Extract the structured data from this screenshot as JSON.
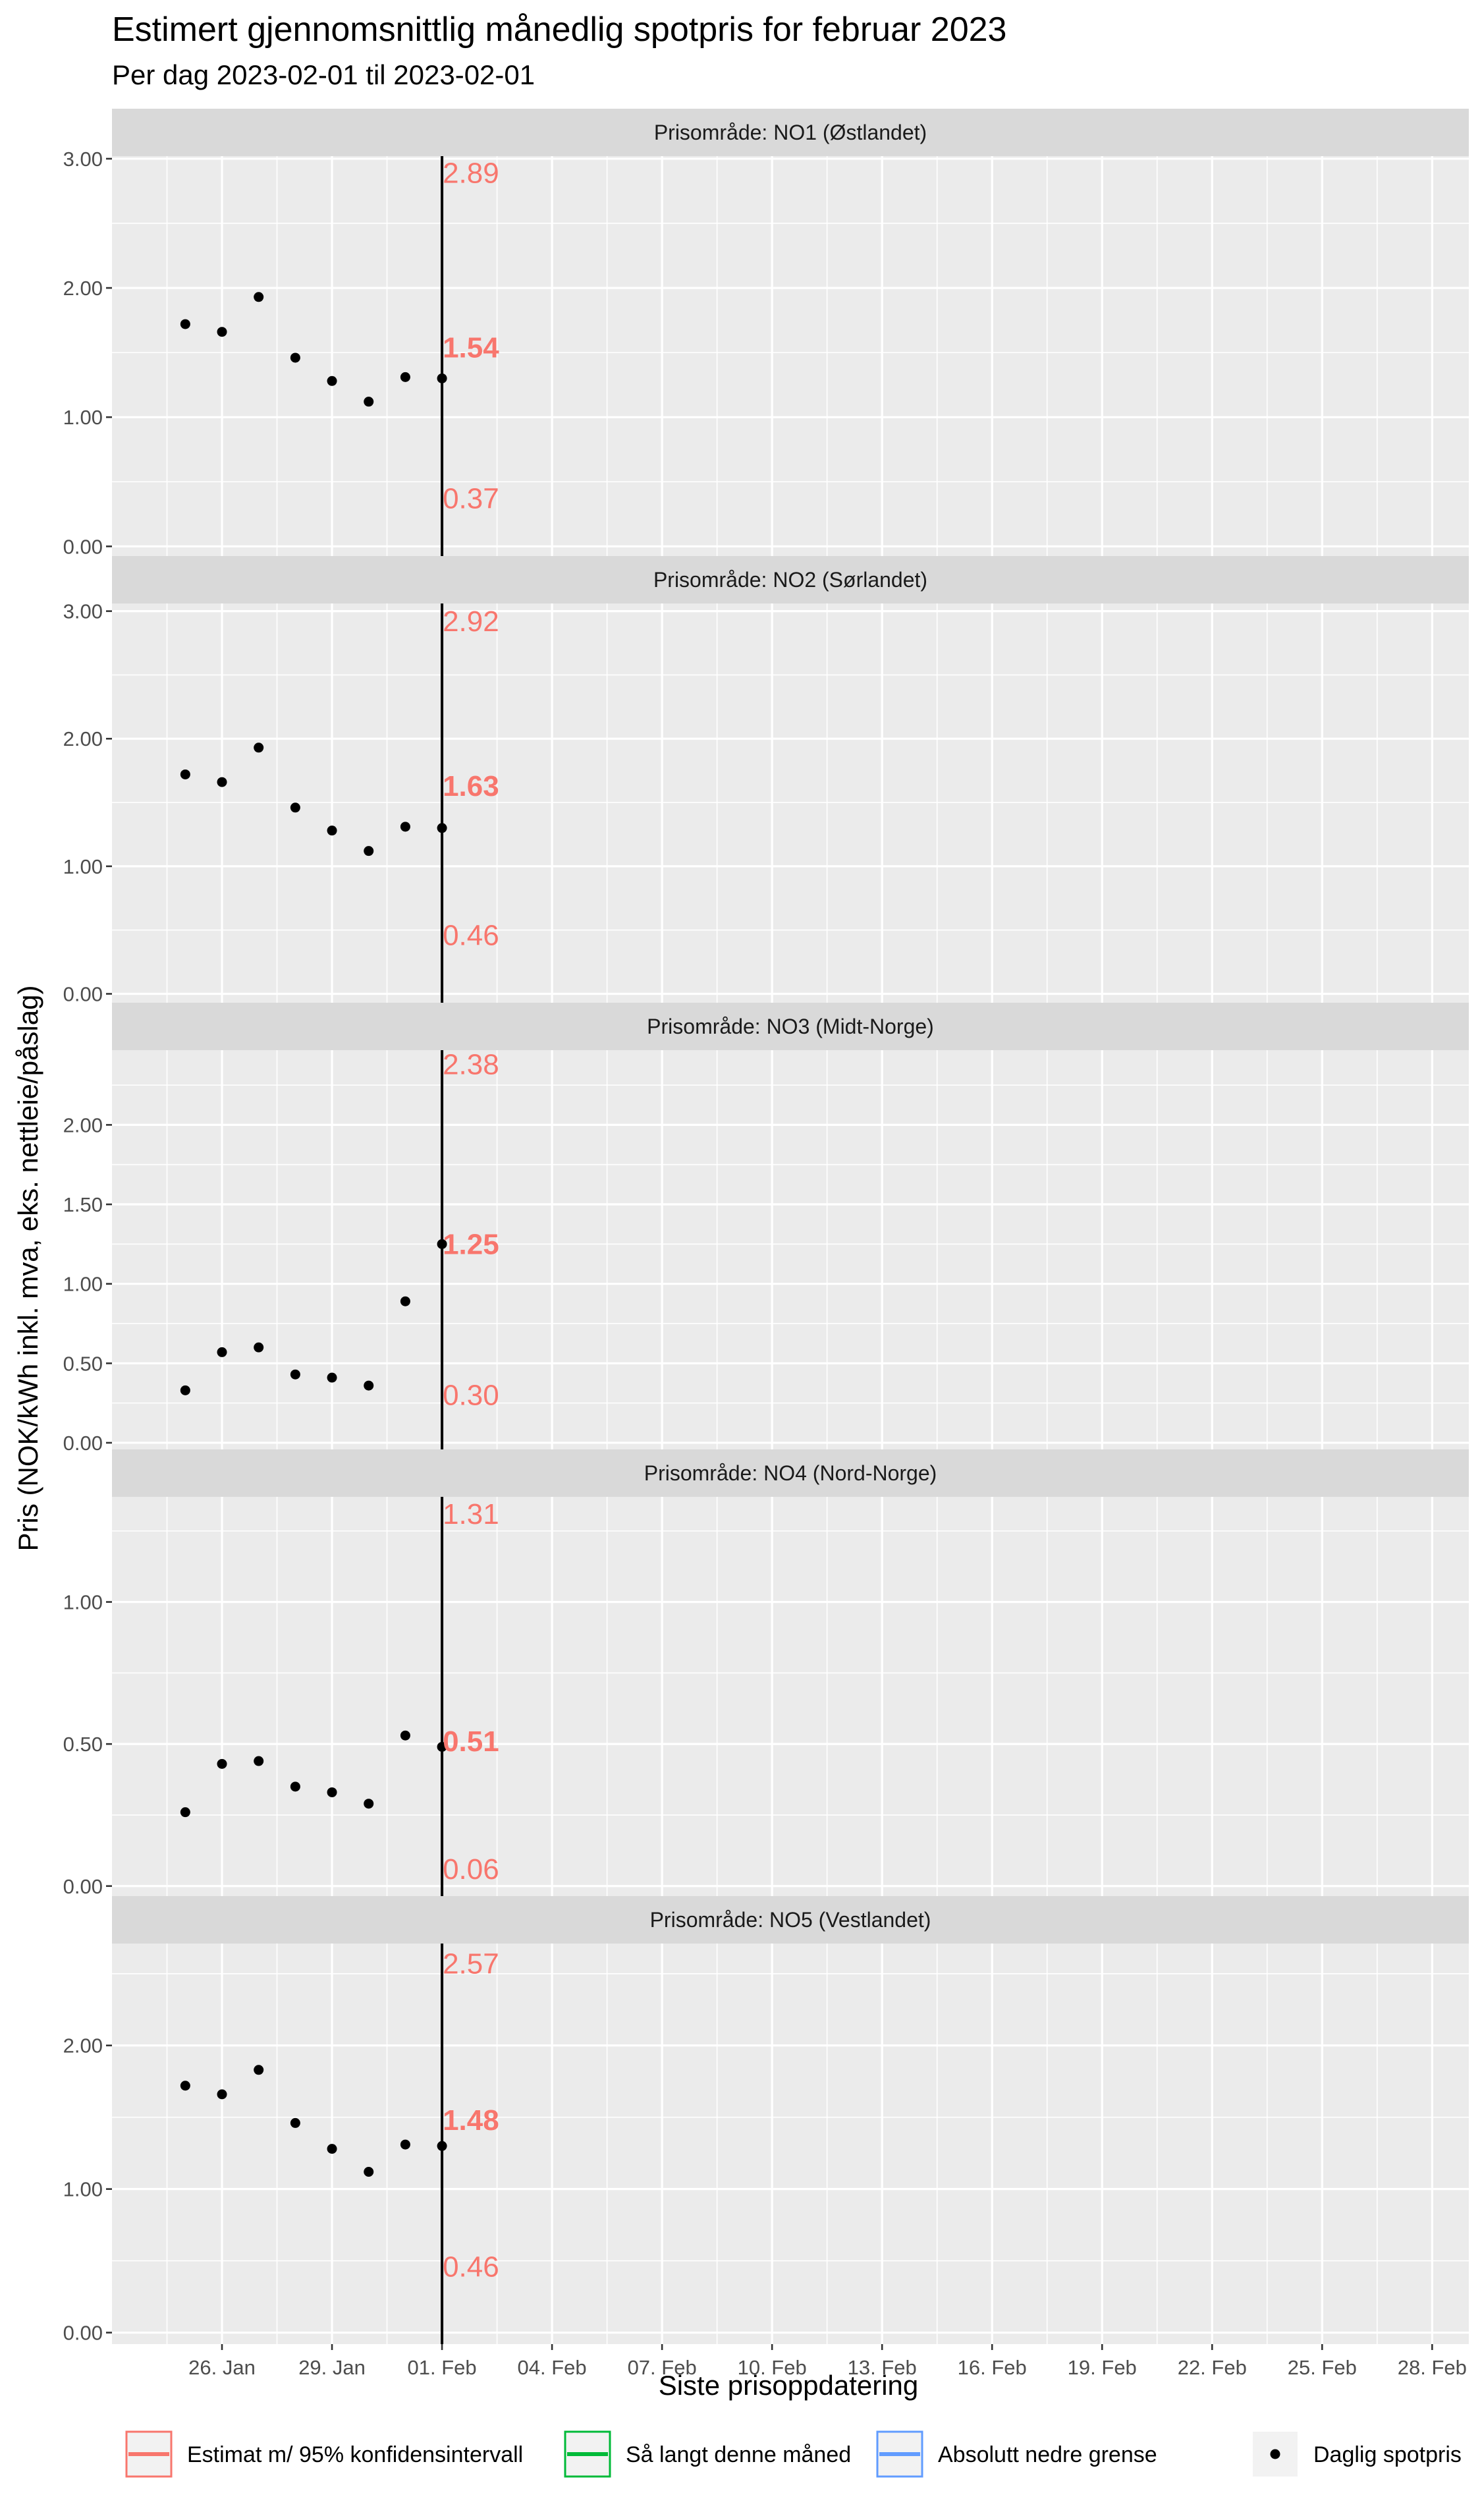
{
  "header": {
    "title": "Estimert gjennomsnittlig månedlig spotpris for februar 2023",
    "subtitle": "Per dag 2023-02-01 til 2023-02-01"
  },
  "chart_data": {
    "type": "scatter",
    "xlabel": "Siste prisoppdatering",
    "ylabel": "Pris (NOK/kWh inkl. mva, eks. nettleie/påslag)",
    "x_range": [
      "2023-01-23",
      "2023-03-01"
    ],
    "x_ticks": [
      "2023-01-26",
      "2023-01-29",
      "2023-02-01",
      "2023-02-04",
      "2023-02-07",
      "2023-02-10",
      "2023-02-13",
      "2023-02-16",
      "2023-02-19",
      "2023-02-22",
      "2023-02-25",
      "2023-02-28"
    ],
    "x_tick_labels": [
      "26. Jan",
      "29. Jan",
      "01. Feb",
      "04. Feb",
      "07. Feb",
      "10. Feb",
      "13. Feb",
      "16. Feb",
      "19. Feb",
      "22. Feb",
      "25. Feb",
      "28. Feb"
    ],
    "grid": true,
    "last_update": "2023-02-01",
    "dates": [
      "2023-01-25",
      "2023-01-26",
      "2023-01-27",
      "2023-01-28",
      "2023-01-29",
      "2023-01-30",
      "2023-01-31",
      "2023-02-01"
    ],
    "facets": [
      {
        "strip": "Prisområde: NO1 (Østlandet)",
        "ylim": [
          -0.08,
          3.02
        ],
        "y_ticks": [
          0,
          1,
          2,
          3
        ],
        "y_tick_labels": [
          "0.00",
          "1.00",
          "2.00",
          "3.00"
        ],
        "daily": [
          1.72,
          1.66,
          1.93,
          1.46,
          1.28,
          1.12,
          1.31,
          1.3
        ],
        "estimate": {
          "low": "0.37",
          "mid": "1.54",
          "high": "2.89",
          "low_value": 0.37,
          "mid_value": 1.54,
          "high_value": 2.89
        }
      },
      {
        "strip": "Prisområde: NO2 (Sørlandet)",
        "ylim": [
          -0.08,
          3.06
        ],
        "y_ticks": [
          0,
          1,
          2,
          3
        ],
        "y_tick_labels": [
          "0.00",
          "1.00",
          "2.00",
          "3.00"
        ],
        "daily": [
          1.72,
          1.66,
          1.93,
          1.46,
          1.28,
          1.12,
          1.31,
          1.3
        ],
        "estimate": {
          "low": "0.46",
          "mid": "1.63",
          "high": "2.92",
          "low_value": 0.46,
          "mid_value": 1.63,
          "high_value": 2.92
        }
      },
      {
        "strip": "Prisområde: NO3 (Midt-Norge)",
        "ylim": [
          -0.05,
          2.47
        ],
        "y_ticks": [
          0,
          0.5,
          1,
          1.5,
          2
        ],
        "y_tick_labels": [
          "0.00",
          "0.50",
          "1.00",
          "1.50",
          "2.00"
        ],
        "daily": [
          0.33,
          0.57,
          0.6,
          0.43,
          0.41,
          0.36,
          0.89,
          1.25
        ],
        "estimate": {
          "low": "0.30",
          "mid": "1.25",
          "high": "2.38",
          "low_value": 0.3,
          "mid_value": 1.25,
          "high_value": 2.38
        }
      },
      {
        "strip": "Prisområde: NO4 (Nord-Norge)",
        "ylim": [
          -0.04,
          1.37
        ],
        "y_ticks": [
          0,
          0.5,
          1
        ],
        "y_tick_labels": [
          "0.00",
          "0.50",
          "1.00"
        ],
        "daily": [
          0.26,
          0.43,
          0.44,
          0.35,
          0.33,
          0.29,
          0.53,
          0.49
        ],
        "estimate": {
          "low": "0.06",
          "mid": "0.51",
          "high": "1.31",
          "low_value": 0.06,
          "mid_value": 0.51,
          "high_value": 1.31
        }
      },
      {
        "strip": "Prisområde: NO5 (Vestlandet)",
        "ylim": [
          -0.08,
          2.71
        ],
        "y_ticks": [
          0,
          1,
          2
        ],
        "y_tick_labels": [
          "0.00",
          "1.00",
          "2.00"
        ],
        "daily": [
          1.72,
          1.66,
          1.83,
          1.46,
          1.28,
          1.12,
          1.31,
          1.3
        ],
        "estimate": {
          "low": "0.46",
          "mid": "1.48",
          "high": "2.57",
          "low_value": 0.46,
          "mid_value": 1.48,
          "high_value": 2.57
        }
      }
    ],
    "legend": {
      "position": "bottom",
      "items": [
        {
          "label": "Estimat m/ 95% konfidensintervall",
          "kind": "line",
          "color": "#f8766d"
        },
        {
          "label": "Så langt denne måned",
          "kind": "line",
          "color": "#00ba38"
        },
        {
          "label": "Absolutt nedre grense",
          "kind": "line",
          "color": "#619cff"
        },
        {
          "label": "Daglig spotpris",
          "kind": "point",
          "color": "#000000"
        }
      ]
    }
  }
}
